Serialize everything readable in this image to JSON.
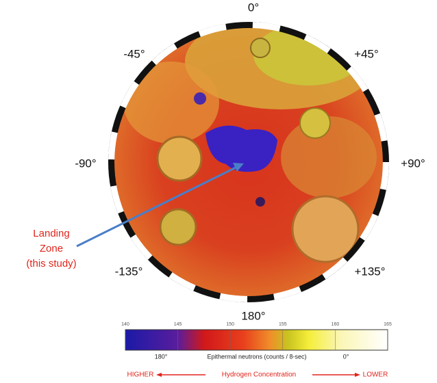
{
  "map": {
    "longitude_labels": [
      "0°",
      "-45°",
      "+45°",
      "-90°",
      "+90°",
      "-135°",
      "+135°",
      "180°"
    ],
    "annotation": [
      "Landing",
      "Zone",
      "(this study)"
    ],
    "colorbar": {
      "ticks": [
        "140",
        "145",
        "150",
        "155",
        "160",
        "165"
      ],
      "left_label": "180°",
      "title": "Epithermal neutrons (counts / 8-sec)",
      "right_label": "0°"
    },
    "hydrogen_scale": {
      "left": "HIGHER",
      "center": "Hydrogen Concentration",
      "right": "LOWER"
    }
  }
}
